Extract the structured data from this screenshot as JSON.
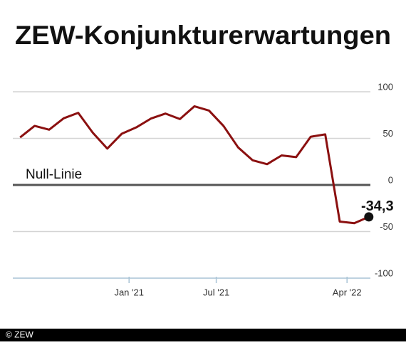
{
  "chart_data": {
    "type": "line",
    "title": "ZEW-Konjunkturerwartungen",
    "x": [
      "2020-05",
      "2020-06",
      "2020-07",
      "2020-08",
      "2020-09",
      "2020-10",
      "2020-11",
      "2020-12",
      "2021-01",
      "2021-02",
      "2021-03",
      "2021-04",
      "2021-05",
      "2021-06",
      "2021-07",
      "2021-08",
      "2021-09",
      "2021-10",
      "2021-11",
      "2021-12",
      "2022-01",
      "2022-02",
      "2022-03",
      "2022-04",
      "2022-05"
    ],
    "series": [
      {
        "color": "#8b1010",
        "values": [
          51,
          63.4,
          59.3,
          71.5,
          77.4,
          56.1,
          39,
          55,
          61.8,
          71.2,
          76.6,
          70.7,
          84.4,
          79.8,
          63.3,
          40.4,
          26.5,
          22.3,
          31.7,
          29.9,
          51.7,
          54.3,
          -39.3,
          -41,
          -34.3
        ],
        "value_labels": [
          null,
          null,
          null,
          null,
          null,
          null,
          null,
          null,
          null,
          null,
          null,
          null,
          null,
          null,
          null,
          null,
          null,
          null,
          null,
          null,
          null,
          null,
          null,
          null,
          "-34,3"
        ]
      }
    ],
    "xlim": [
      "2020-05",
      "2022-06"
    ],
    "xticks": [
      {
        "value": "2021-01",
        "label": "Jan '21"
      },
      {
        "value": "2021-07",
        "label": "Jul '21"
      },
      {
        "value": "2022-04",
        "label": "Apr '22"
      }
    ],
    "ylim": [
      -100,
      100
    ],
    "yticks": [
      100,
      50,
      0,
      -50,
      -100
    ],
    "grid": true,
    "zero_line_label": "Null-Linie",
    "source": "© ZEW"
  }
}
